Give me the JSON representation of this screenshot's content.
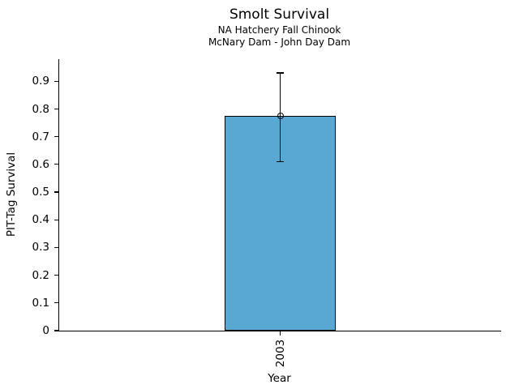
{
  "chart_data": {
    "type": "bar",
    "title": "Smolt Survival",
    "subtitle_line1": "NA Hatchery Fall Chinook",
    "subtitle_line2": "McNary Dam - John Day Dam",
    "xlabel": "Year",
    "ylabel": "PIT-Tag Survival",
    "categories": [
      "2003"
    ],
    "values": [
      0.775
    ],
    "error_low": [
      0.61
    ],
    "error_high": [
      0.93
    ],
    "ylim": [
      0,
      0.98
    ],
    "ytick_values": [
      0,
      0.1,
      0.2,
      0.3,
      0.4,
      0.5,
      0.6,
      0.7,
      0.8,
      0.9
    ],
    "ytick_labels": [
      "0",
      "0.1",
      "0.2",
      "0.3",
      "0.4",
      "0.5",
      "0.6",
      "0.7",
      "0.8",
      "0.9"
    ],
    "xtick_rotation_deg": 90,
    "grid": false,
    "legend": false,
    "marker": "open-circle",
    "colors": {
      "bar_fill": "#58a8d3",
      "bar_edge": "#000000",
      "error_bar": "#000000",
      "text": "#000000",
      "background": "#ffffff"
    }
  }
}
